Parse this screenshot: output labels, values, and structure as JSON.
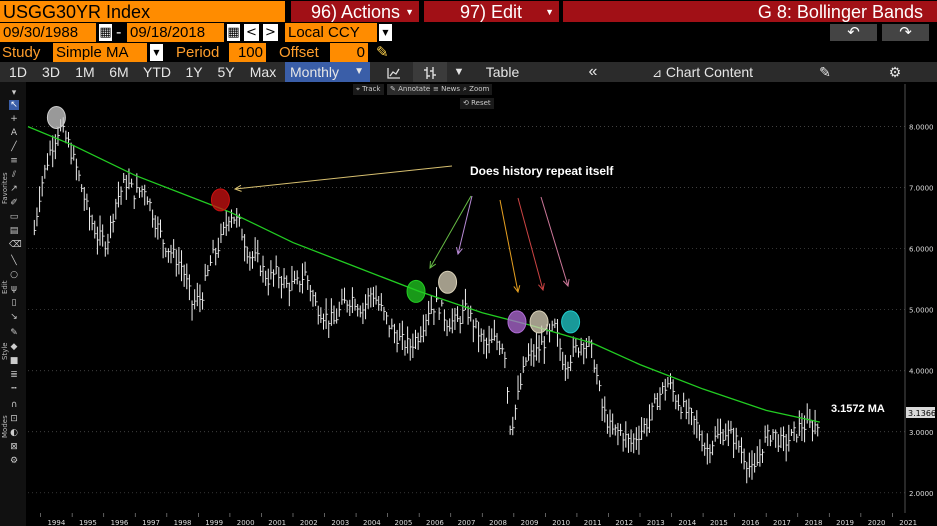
{
  "header": {
    "ticker": "USGG30YR Index",
    "actions": "96) Actions",
    "edit": "97) Edit",
    "page_title": "G 8: Bollinger Bands"
  },
  "range": {
    "start_date": "09/30/1988",
    "separator": "-",
    "end_date": "09/18/2018",
    "currency": "Local CCY"
  },
  "study": {
    "study_label": "Study",
    "study_value": "Simple MA",
    "period_label": "Period",
    "period_value": "100",
    "offset_label": "Offset",
    "offset_value": "0"
  },
  "toolbar": {
    "periods": [
      "1D",
      "3D",
      "1M",
      "6M",
      "YTD",
      "1Y",
      "5Y",
      "Max"
    ],
    "frequency": "Monthly",
    "table": "Table",
    "chart_content": "Chart Content"
  },
  "mini_toolbar": {
    "track": "Track",
    "annotate": "Annotate",
    "news": "News",
    "zoom": "Zoom",
    "reset": "Reset"
  },
  "palette": {
    "favorites": "Favorites",
    "edit": "Edit",
    "style": "Style",
    "modes": "Modes"
  },
  "annotations": {
    "question": "Does history repeat itself",
    "ma_label": "3.1572 MA",
    "last_price": "3.1366"
  },
  "colors": {
    "accent_orange": "#ff8c00",
    "header_red": "#a11016",
    "ma_line": "#22cc22",
    "price_bars": "#ffffff"
  },
  "chart_data": {
    "type": "line",
    "title": "",
    "x_tick_labels": [
      "1994",
      "1995",
      "1996",
      "1997",
      "1998",
      "1999",
      "2000",
      "2001",
      "2002",
      "2003",
      "2004",
      "2005",
      "2006",
      "2007",
      "2008",
      "2009",
      "2010",
      "2011",
      "2012",
      "2013",
      "2014",
      "2015",
      "2016",
      "2017",
      "2018",
      "2019",
      "2020",
      "2021"
    ],
    "y_tick_labels": [
      "8.0000",
      "7.0000",
      "6.0000",
      "5.0000",
      "4.0000",
      "3.0000",
      "2.0000"
    ],
    "ylim": [
      1.8,
      8.6
    ],
    "xlim": [
      1993.6,
      2021.4
    ],
    "series": [
      {
        "style": "ohlc-bars",
        "x": [
          1993.8,
          1994.0,
          1994.3,
          1994.6,
          1994.9,
          1995.2,
          1995.5,
          1995.8,
          1996.1,
          1996.4,
          1996.7,
          1997.0,
          1997.3,
          1997.6,
          1997.9,
          1998.2,
          1998.5,
          1998.8,
          1999.1,
          1999.4,
          1999.7,
          2000.0,
          2000.3,
          2000.6,
          2000.9,
          2001.2,
          2001.5,
          2001.8,
          2002.1,
          2002.4,
          2002.7,
          2003.0,
          2003.3,
          2003.6,
          2003.9,
          2004.2,
          2004.5,
          2004.8,
          2005.1,
          2005.4,
          2005.7,
          2006.0,
          2006.3,
          2006.6,
          2006.9,
          2007.2,
          2007.5,
          2007.8,
          2008.1,
          2008.4,
          2008.7,
          2008.9,
          2009.1,
          2009.4,
          2009.7,
          2010.0,
          2010.3,
          2010.6,
          2010.9,
          2011.2,
          2011.5,
          2011.8,
          2012.1,
          2012.4,
          2012.7,
          2013.0,
          2013.3,
          2013.6,
          2013.9,
          2014.2,
          2014.5,
          2014.8,
          2015.1,
          2015.4,
          2015.7,
          2016.0,
          2016.3,
          2016.6,
          2016.9,
          2017.2,
          2017.5,
          2017.8,
          2018.1,
          2018.4,
          2018.7
        ],
        "values": [
          6.3,
          7.0,
          7.6,
          8.0,
          7.7,
          7.2,
          6.6,
          6.2,
          6.1,
          6.8,
          7.1,
          6.9,
          7.0,
          6.5,
          6.1,
          5.9,
          5.7,
          5.1,
          5.2,
          5.8,
          6.1,
          6.6,
          6.4,
          5.9,
          5.8,
          5.5,
          5.6,
          5.4,
          5.4,
          5.6,
          5.1,
          4.9,
          4.8,
          5.1,
          5.2,
          5.0,
          5.3,
          5.0,
          4.7,
          4.5,
          4.4,
          4.6,
          5.0,
          5.1,
          4.8,
          4.8,
          5.0,
          4.7,
          4.4,
          4.5,
          4.4,
          3.0,
          3.5,
          4.2,
          4.3,
          4.5,
          4.7,
          4.1,
          4.3,
          4.5,
          4.3,
          3.4,
          3.0,
          3.0,
          2.8,
          3.0,
          3.2,
          3.6,
          3.8,
          3.5,
          3.3,
          3.1,
          2.7,
          2.9,
          3.0,
          2.9,
          2.6,
          2.3,
          2.8,
          3.0,
          2.8,
          2.9,
          3.1,
          3.1,
          3.1
        ]
      },
      {
        "style": "ma-line",
        "x": [
          1993.6,
          1995.0,
          1997.0,
          1999.0,
          2000.0,
          2002.0,
          2004.0,
          2006.0,
          2008.0,
          2009.5,
          2010.5,
          2011.5,
          2013.0,
          2015.0,
          2017.0,
          2018.7
        ],
        "values": [
          8.0,
          7.7,
          7.2,
          6.8,
          6.6,
          6.1,
          5.7,
          5.3,
          4.95,
          4.75,
          4.6,
          4.45,
          4.1,
          3.7,
          3.35,
          3.1572
        ]
      }
    ],
    "highlights": [
      {
        "x": 1994.5,
        "y": 8.15,
        "color": "#cccccc"
      },
      {
        "x": 1999.7,
        "y": 6.8,
        "color": "#cc1111"
      },
      {
        "x": 2005.9,
        "y": 5.3,
        "color": "#22cc22"
      },
      {
        "x": 2006.9,
        "y": 5.45,
        "color": "#d8d0b8"
      },
      {
        "x": 2009.1,
        "y": 4.8,
        "color": "#b06bd6"
      },
      {
        "x": 2009.8,
        "y": 4.8,
        "color": "#d8d0b8"
      },
      {
        "x": 2010.8,
        "y": 4.8,
        "color": "#22cccc"
      }
    ]
  }
}
